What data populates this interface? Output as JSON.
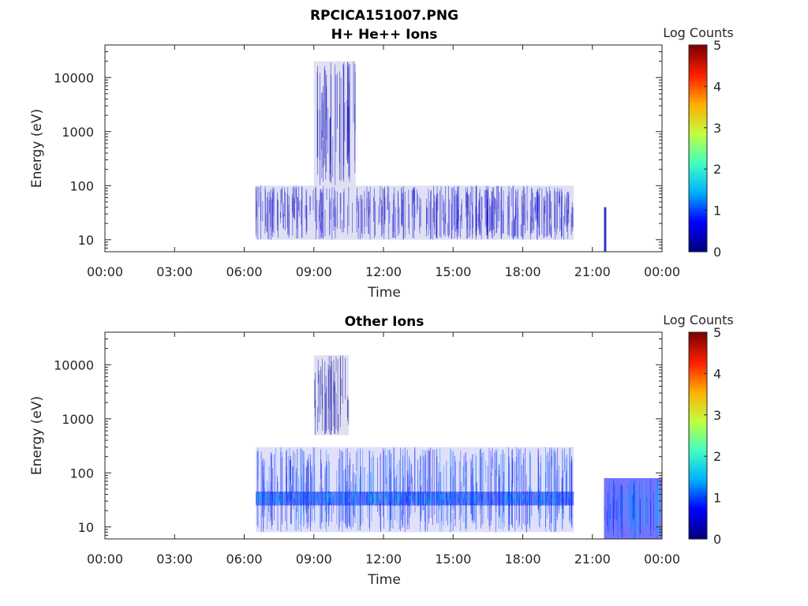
{
  "title": "RPCICA151007.PNG",
  "colorbar_label": "Log Counts",
  "colorbar_ticks": [
    "0",
    "1",
    "2",
    "3",
    "4",
    "5"
  ],
  "colormap": [
    "#000080",
    "#0000ff",
    "#00b0ff",
    "#40ffc0",
    "#c0ff40",
    "#ffb000",
    "#ff2000",
    "#800000"
  ],
  "chart_data": [
    {
      "type": "heatmap",
      "title": "H+ He++ Ions",
      "xlabel": "Time",
      "ylabel": "Energy (eV)",
      "xticks": [
        "00:00",
        "03:00",
        "06:00",
        "09:00",
        "12:00",
        "15:00",
        "18:00",
        "21:00",
        "00:00"
      ],
      "xlim_hours": [
        0,
        24
      ],
      "yscale": "log",
      "ylim": [
        6,
        40000
      ],
      "yticks": [
        "10",
        "100",
        "1000",
        "10000"
      ],
      "clim": [
        0,
        5
      ],
      "regions": [
        {
          "x": [
            6.5,
            20.2
          ],
          "y": [
            10,
            100
          ],
          "level": 0.4
        },
        {
          "x": [
            9.0,
            10.8
          ],
          "y": [
            100,
            20000
          ],
          "level": 0.3
        },
        {
          "x": [
            21.5,
            21.6
          ],
          "y": [
            6,
            40
          ],
          "level": 0.3
        }
      ]
    },
    {
      "type": "heatmap",
      "title": "Other Ions",
      "xlabel": "Time",
      "ylabel": "Energy (eV)",
      "xticks": [
        "00:00",
        "03:00",
        "06:00",
        "09:00",
        "12:00",
        "15:00",
        "18:00",
        "21:00",
        "00:00"
      ],
      "xlim_hours": [
        0,
        24
      ],
      "yscale": "log",
      "ylim": [
        6,
        40000
      ],
      "yticks": [
        "10",
        "100",
        "1000",
        "10000"
      ],
      "clim": [
        0,
        5
      ],
      "regions": [
        {
          "x": [
            6.5,
            20.2
          ],
          "y": [
            8,
            300
          ],
          "level": 0.9
        },
        {
          "x": [
            6.5,
            20.2
          ],
          "y": [
            25,
            45
          ],
          "level": 1.4
        },
        {
          "x": [
            9.0,
            10.5
          ],
          "y": [
            500,
            15000
          ],
          "level": 0.2
        },
        {
          "x": [
            21.5,
            24.0
          ],
          "y": [
            6,
            80
          ],
          "level": 1.2
        }
      ]
    }
  ]
}
